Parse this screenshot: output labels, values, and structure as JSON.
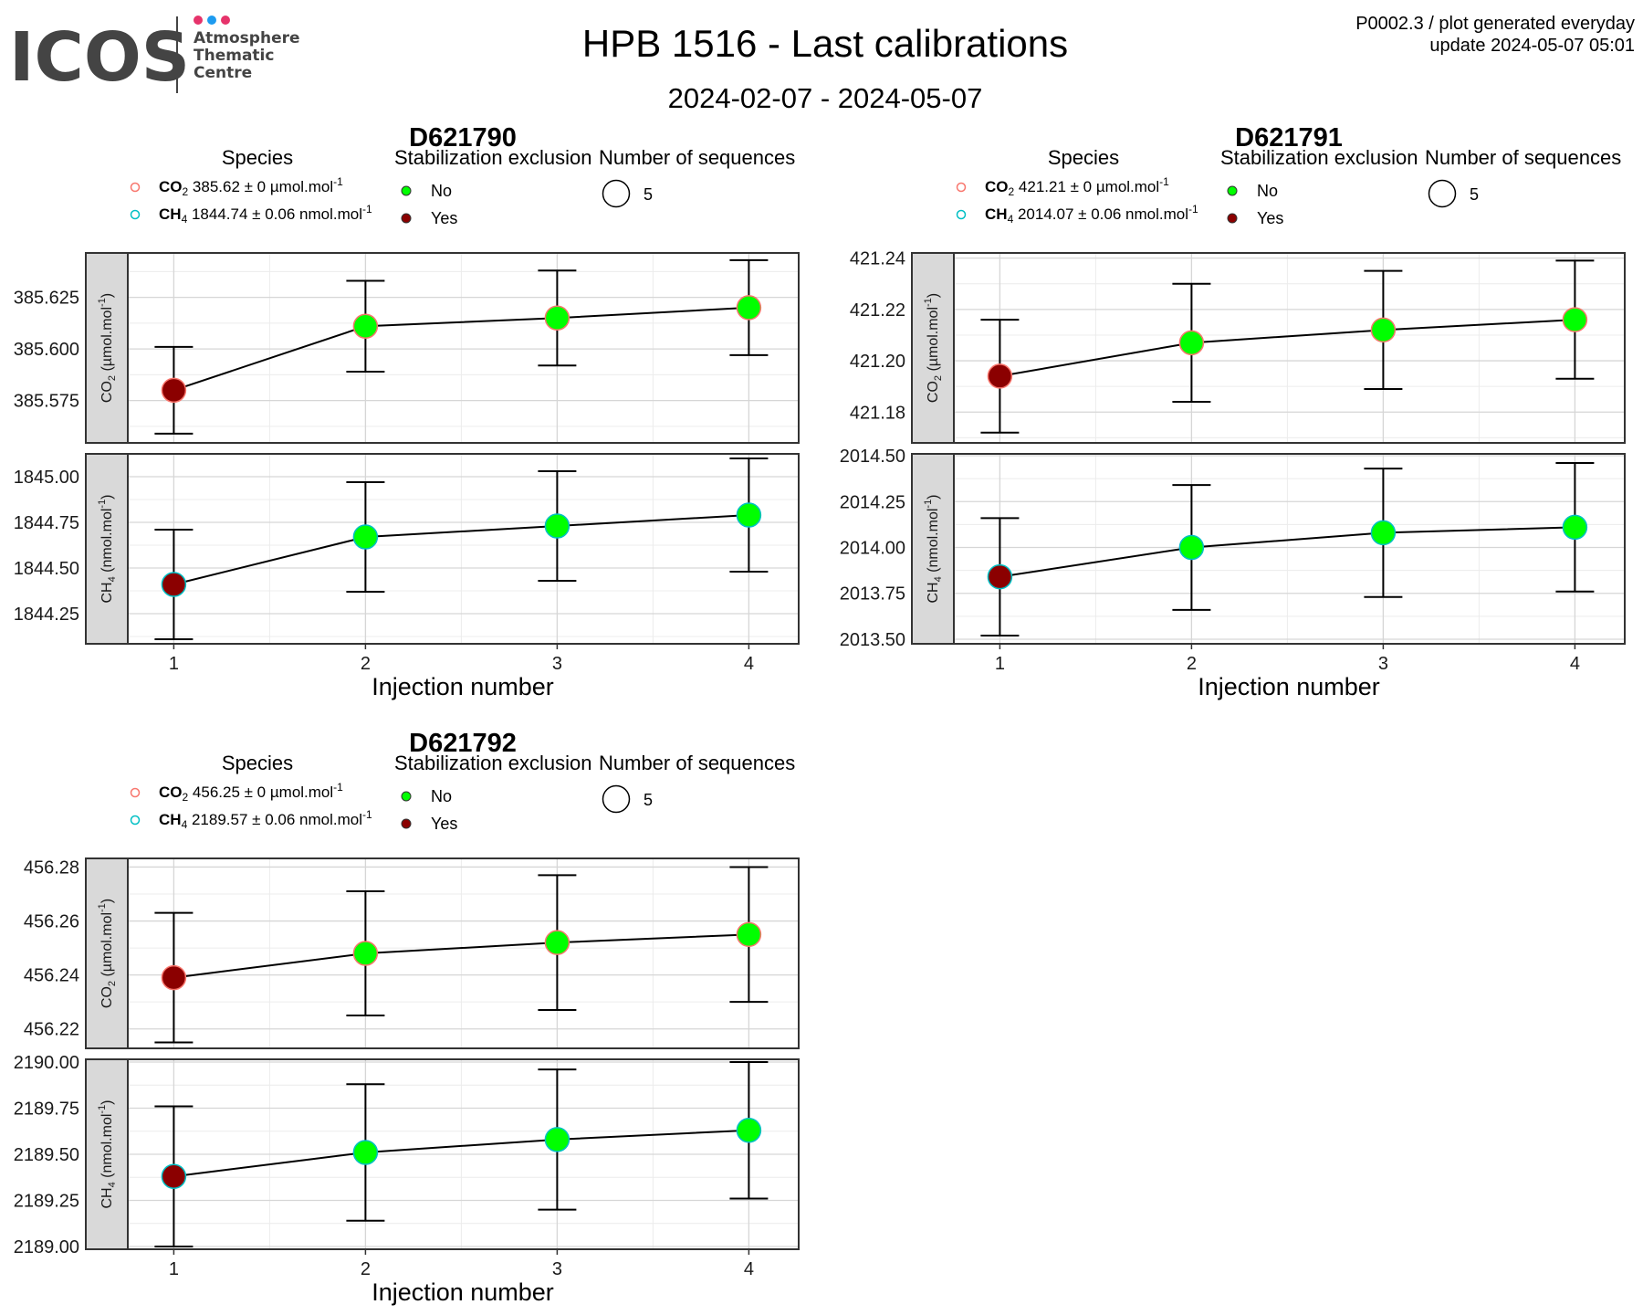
{
  "header": {
    "logo_text": "ICOS",
    "logo_sub": [
      "Atmosphere",
      "Thematic",
      "Centre"
    ],
    "logo_dot_colors": [
      "#e6336b",
      "#1d9bf0",
      "#e6336b"
    ],
    "title": "HPB 1516 - Last calibrations",
    "date_range": "2024-02-07 - 2024-05-07",
    "product_code": "P0002.3 / plot generated everyday",
    "update": "update  2024-05-07 05:01"
  },
  "legend_labels": {
    "species": "Species",
    "stabilization": "Stabilization exclusion",
    "sequences": "Number of sequences",
    "no": "No",
    "yes": "Yes",
    "sequences_value": "5"
  },
  "colors": {
    "no_fill": "#00ff00",
    "yes_fill": "#8b0000",
    "co2_outline": "#f8766d",
    "ch4_outline": "#00bfc4",
    "strip_bg": "#d9d9d9",
    "grid_major": "#d6d6d6",
    "grid_minor": "#ececec"
  },
  "x_axis_label": "Injection number",
  "chart_data": [
    {
      "type": "scatter",
      "title": "D621790",
      "legend": [
        {
          "species": "CO",
          "sub": "2",
          "text": "385.62 ± 0 µmol.mol",
          "sup": "-1"
        },
        {
          "species": "CH",
          "sub": "4",
          "text": "1844.74 ± 0.06 nmol.mol",
          "sup": "-1"
        }
      ],
      "x": [
        1,
        2,
        3,
        4
      ],
      "xlim": [
        0.76,
        4.26
      ],
      "panels": [
        {
          "strip": "CO2 (µmol.mol-1)",
          "strip_base": "CO",
          "strip_sub": "2",
          "strip_unit": " (µmol.mol",
          "strip_sup": "-1",
          "y": [
            385.58,
            385.611,
            385.615,
            385.62
          ],
          "err": [
            0.021,
            0.022,
            0.023,
            0.023
          ],
          "excluded": [
            true,
            false,
            false,
            false
          ],
          "ylim": [
            385.5545,
            385.6465
          ],
          "ticks": [
            385.575,
            385.6,
            385.625
          ],
          "tick_labels": [
            "385.575",
            "385.600",
            "385.625"
          ]
        },
        {
          "strip": "CH4 (nmol.mol-1)",
          "strip_base": "CH",
          "strip_sub": "4",
          "strip_unit": " (nmol.mol",
          "strip_sup": "-1",
          "y": [
            1844.41,
            1844.67,
            1844.73,
            1844.79
          ],
          "err": [
            0.3,
            0.3,
            0.3,
            0.31
          ],
          "excluded": [
            true,
            false,
            false,
            false
          ],
          "ylim": [
            1844.085,
            1845.125
          ],
          "ticks": [
            1844.25,
            1844.5,
            1844.75,
            1845.0
          ],
          "tick_labels": [
            "1844.25",
            "1844.50",
            "1844.75",
            "1845.00"
          ]
        }
      ]
    },
    {
      "type": "scatter",
      "title": "D621791",
      "legend": [
        {
          "species": "CO",
          "sub": "2",
          "text": "421.21 ± 0 µmol.mol",
          "sup": "-1"
        },
        {
          "species": "CH",
          "sub": "4",
          "text": "2014.07 ± 0.06 nmol.mol",
          "sup": "-1"
        }
      ],
      "x": [
        1,
        2,
        3,
        4
      ],
      "xlim": [
        0.76,
        4.26
      ],
      "panels": [
        {
          "strip": "CO2 (µmol.mol-1)",
          "strip_base": "CO",
          "strip_sub": "2",
          "strip_unit": " (µmol.mol",
          "strip_sup": "-1",
          "y": [
            421.194,
            421.207,
            421.212,
            421.216
          ],
          "err": [
            0.022,
            0.023,
            0.023,
            0.023
          ],
          "excluded": [
            true,
            false,
            false,
            false
          ],
          "ylim": [
            421.168,
            421.242
          ],
          "ticks": [
            421.18,
            421.2,
            421.22,
            421.24
          ],
          "tick_labels": [
            "421.18",
            "421.20",
            "421.22",
            "421.24"
          ]
        },
        {
          "strip": "CH4 (nmol.mol-1)",
          "strip_base": "CH",
          "strip_sub": "4",
          "strip_unit": " (nmol.mol",
          "strip_sup": "-1",
          "y": [
            2013.84,
            2014.0,
            2014.08,
            2014.11
          ],
          "err": [
            0.32,
            0.34,
            0.35,
            0.35
          ],
          "excluded": [
            true,
            false,
            false,
            false
          ],
          "ylim": [
            2013.475,
            2014.51
          ],
          "ticks": [
            2013.5,
            2013.75,
            2014.0,
            2014.25,
            2014.5
          ],
          "tick_labels": [
            "2013.50",
            "2013.75",
            "2014.00",
            "2014.25",
            "2014.50"
          ]
        }
      ]
    },
    {
      "type": "scatter",
      "title": "D621792",
      "legend": [
        {
          "species": "CO",
          "sub": "2",
          "text": "456.25 ± 0 µmol.mol",
          "sup": "-1"
        },
        {
          "species": "CH",
          "sub": "4",
          "text": "2189.57 ± 0.06 nmol.mol",
          "sup": "-1"
        }
      ],
      "x": [
        1,
        2,
        3,
        4
      ],
      "xlim": [
        0.76,
        4.26
      ],
      "panels": [
        {
          "strip": "CO2 (µmol.mol-1)",
          "strip_base": "CO",
          "strip_sub": "2",
          "strip_unit": " (µmol.mol",
          "strip_sup": "-1",
          "y": [
            456.239,
            456.248,
            456.252,
            456.255
          ],
          "err": [
            0.024,
            0.023,
            0.025,
            0.025
          ],
          "excluded": [
            true,
            false,
            false,
            false
          ],
          "ylim": [
            456.2128,
            456.2832
          ],
          "ticks": [
            456.22,
            456.24,
            456.26,
            456.28
          ],
          "tick_labels": [
            "456.22",
            "456.24",
            "456.26",
            "456.28"
          ]
        },
        {
          "strip": "CH4 (nmol.mol-1)",
          "strip_base": "CH",
          "strip_sub": "4",
          "strip_unit": " (nmol.mol",
          "strip_sup": "-1",
          "y": [
            2189.38,
            2189.51,
            2189.58,
            2189.63
          ],
          "err": [
            0.38,
            0.37,
            0.38,
            0.37
          ],
          "excluded": [
            true,
            false,
            false,
            false
          ],
          "ylim": [
            2188.985,
            2190.015
          ],
          "ticks": [
            2189.0,
            2189.25,
            2189.5,
            2189.75,
            2190.0
          ],
          "tick_labels": [
            "2189.00",
            "2189.25",
            "2189.50",
            "2189.75",
            "2190.00"
          ]
        }
      ]
    }
  ]
}
